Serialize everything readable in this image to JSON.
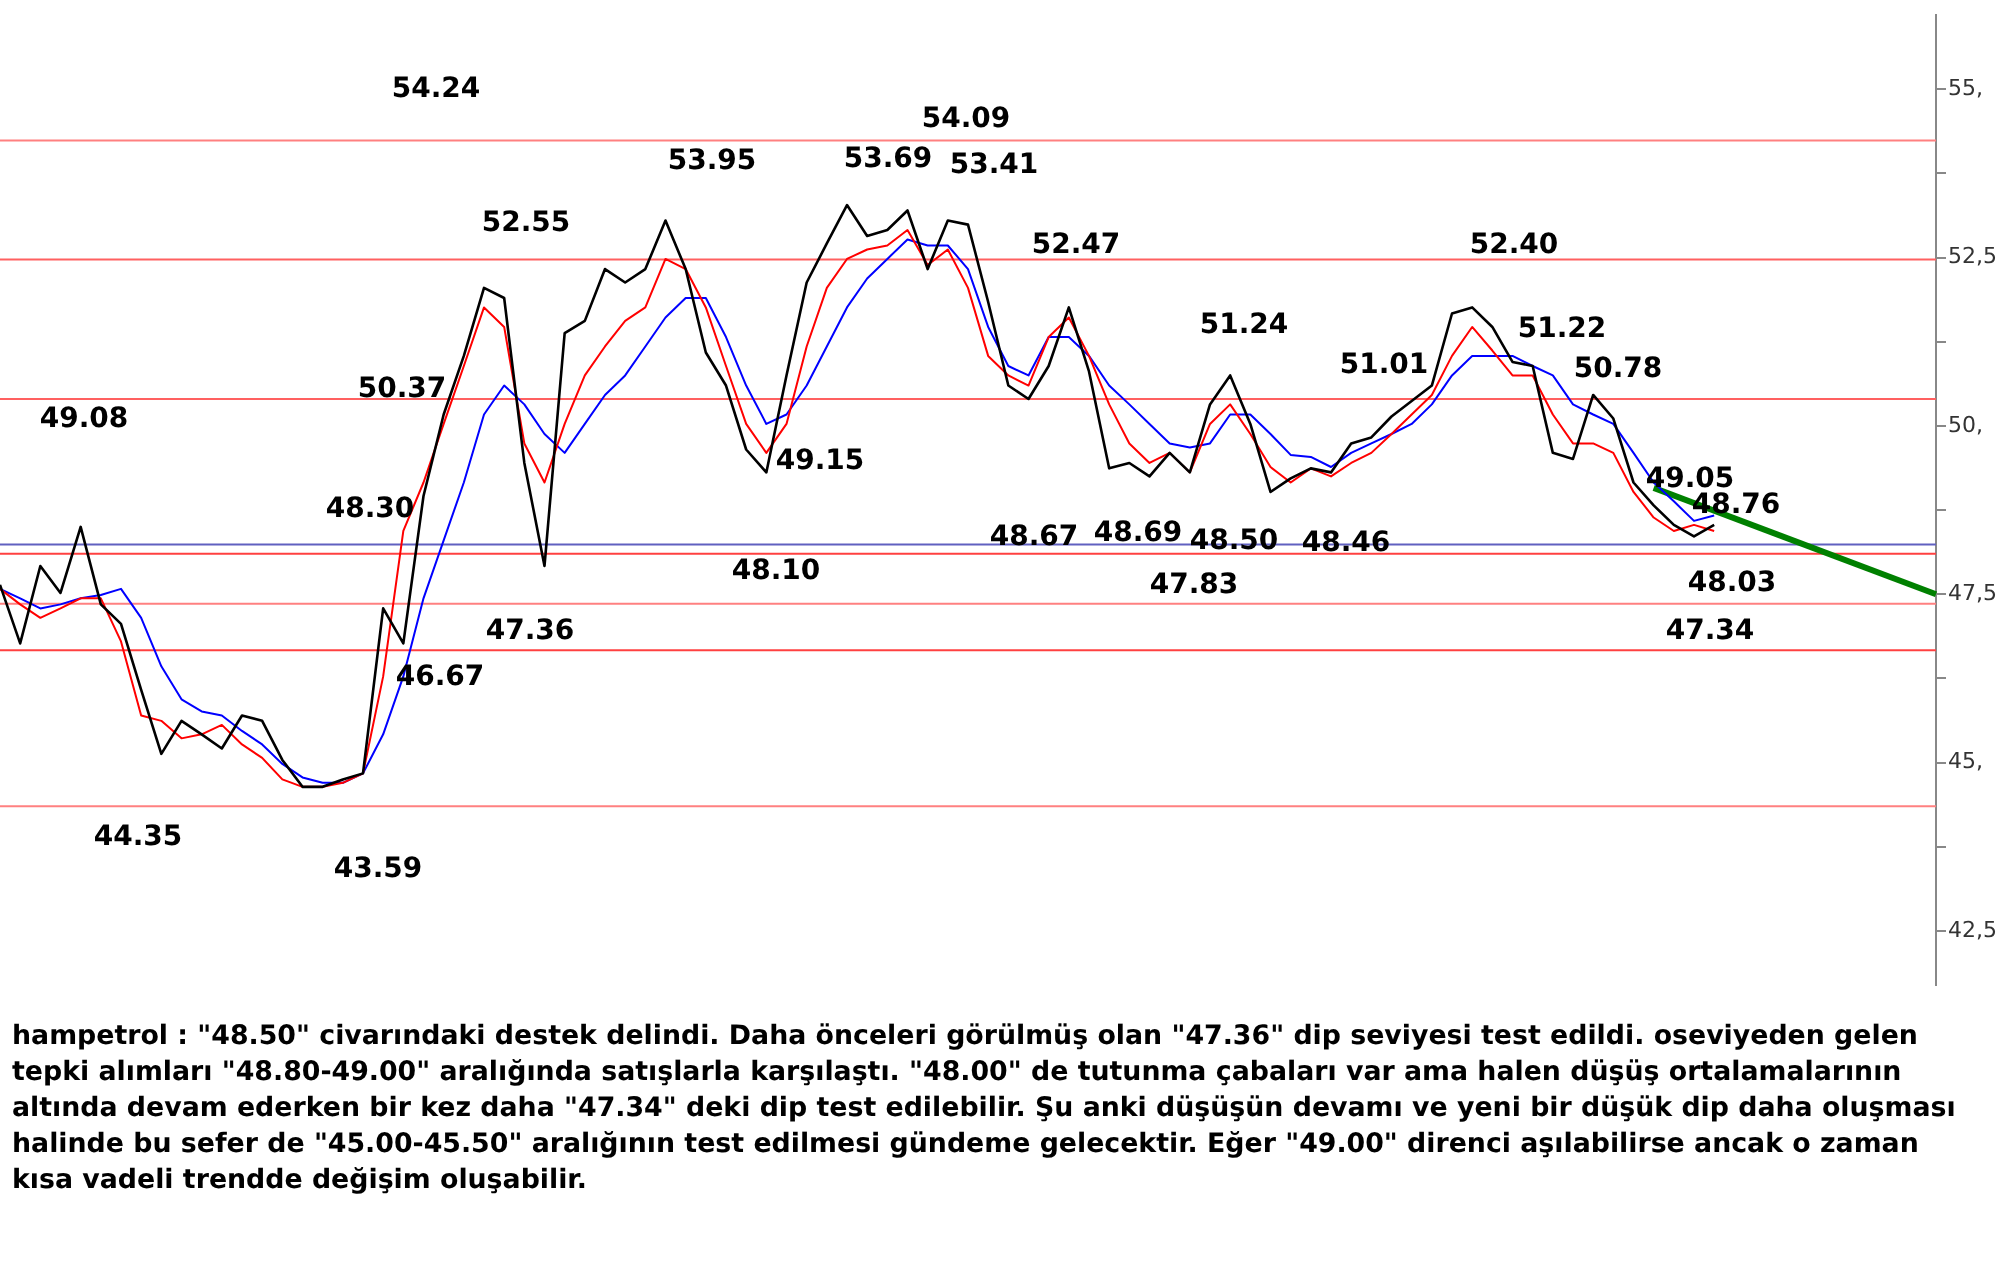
{
  "chart_data": {
    "type": "line",
    "categories": [
      null,
      null,
      null,
      null,
      null,
      null,
      null,
      null,
      null,
      null,
      null,
      null,
      null,
      null,
      null,
      null,
      null,
      null,
      null,
      null,
      null,
      null,
      null,
      null,
      null,
      null,
      null,
      null,
      null,
      null,
      null,
      null,
      null,
      null,
      null,
      null,
      null,
      null,
      null,
      null,
      null,
      null,
      null,
      null,
      null,
      null,
      null,
      null,
      null,
      null,
      null,
      null,
      null,
      null,
      null,
      null,
      null,
      null,
      null,
      null,
      null,
      null,
      null,
      null,
      null,
      null,
      null,
      null,
      null,
      null,
      null,
      null,
      null,
      null,
      null,
      null,
      null,
      null,
      null,
      null,
      null,
      null,
      null,
      null,
      null,
      null,
      null,
      null,
      null,
      null,
      null,
      null,
      null,
      null,
      null,
      null,
      null
    ],
    "series": [
      {
        "color": "#000000",
        "values": [
          47.64,
          46.77,
          47.92,
          47.52,
          48.5,
          47.35,
          47.06,
          46.08,
          45.13,
          45.62,
          45.42,
          45.21,
          45.7,
          45.62,
          45.04,
          44.64,
          44.64,
          44.75,
          44.84,
          47.29,
          46.77,
          48.96,
          50.17,
          51.04,
          52.05,
          51.9,
          49.45,
          47.92,
          51.38,
          51.56,
          52.33,
          52.13,
          52.33,
          53.05,
          52.33,
          51.09,
          50.6,
          49.65,
          49.31,
          50.75,
          52.13,
          52.71,
          53.28,
          52.82,
          52.91,
          53.2,
          52.33,
          53.05,
          52.99,
          51.84,
          50.6,
          50.4,
          50.89,
          51.76,
          50.81,
          49.37,
          49.45,
          49.25,
          49.6,
          49.31,
          50.32,
          50.75,
          50.03,
          49.02,
          49.22,
          49.37,
          49.31,
          49.74,
          49.83,
          50.14,
          50.37,
          50.6,
          51.67,
          51.76,
          51.47,
          50.95,
          50.89,
          49.6,
          49.51,
          50.46,
          50.11,
          49.16,
          48.82,
          48.53,
          48.36,
          48.53,
          null,
          null,
          null,
          null,
          null,
          null,
          null,
          null,
          null,
          null,
          null
        ]
      },
      {
        "color": "#ff0000",
        "values": [
          47.58,
          47.35,
          47.15,
          47.29,
          47.44,
          47.44,
          46.8,
          45.7,
          45.62,
          45.36,
          45.42,
          45.56,
          45.27,
          45.07,
          44.75,
          44.64,
          44.64,
          44.7,
          44.84,
          46.28,
          48.44,
          49.16,
          50.03,
          50.89,
          51.76,
          51.47,
          49.74,
          49.16,
          50.03,
          50.75,
          51.18,
          51.56,
          51.76,
          52.48,
          52.33,
          51.76,
          50.89,
          50.03,
          49.6,
          50.03,
          51.18,
          52.05,
          52.48,
          52.62,
          52.68,
          52.91,
          52.39,
          52.62,
          52.05,
          51.04,
          50.75,
          50.6,
          51.32,
          51.61,
          51.04,
          50.32,
          49.74,
          49.45,
          49.6,
          49.31,
          50.03,
          50.32,
          49.88,
          49.39,
          49.16,
          49.37,
          49.25,
          49.45,
          49.6,
          49.88,
          50.17,
          50.46,
          51.04,
          51.47,
          51.12,
          50.75,
          50.75,
          50.17,
          49.74,
          49.74,
          49.6,
          49.02,
          48.64,
          48.44,
          48.53,
          48.44,
          null,
          null,
          null,
          null,
          null,
          null,
          null,
          null,
          null,
          null,
          null
        ]
      },
      {
        "color": "#0000ff",
        "values": [
          47.58,
          47.44,
          47.29,
          47.35,
          47.44,
          47.49,
          47.58,
          47.15,
          46.43,
          45.94,
          45.76,
          45.7,
          45.47,
          45.27,
          44.98,
          44.78,
          44.7,
          44.7,
          44.84,
          45.42,
          46.28,
          47.44,
          48.3,
          49.16,
          50.17,
          50.6,
          50.32,
          49.88,
          49.6,
          50.03,
          50.46,
          50.75,
          51.18,
          51.61,
          51.9,
          51.9,
          51.32,
          50.6,
          50.03,
          50.17,
          50.6,
          51.18,
          51.76,
          52.19,
          52.48,
          52.77,
          52.68,
          52.68,
          52.33,
          51.47,
          50.89,
          50.75,
          51.32,
          51.32,
          51.04,
          50.6,
          50.32,
          50.03,
          49.74,
          49.68,
          49.74,
          50.17,
          50.17,
          49.88,
          49.57,
          49.54,
          49.39,
          49.6,
          49.74,
          49.88,
          50.03,
          50.32,
          50.75,
          51.04,
          51.04,
          51.04,
          50.89,
          50.75,
          50.32,
          50.17,
          50.03,
          49.6,
          49.16,
          48.88,
          48.59,
          48.67,
          null,
          null,
          null,
          null,
          null,
          null,
          null,
          null,
          null,
          null,
          null
        ]
      },
      {
        "type": "line",
        "color": "#008000",
        "values": [
          null,
          null,
          null,
          null,
          null,
          null,
          null,
          null,
          null,
          null,
          null,
          null,
          null,
          null,
          null,
          null,
          null,
          null,
          null,
          null,
          null,
          null,
          null,
          null,
          null,
          null,
          null,
          null,
          null,
          null,
          null,
          null,
          null,
          null,
          null,
          null,
          null,
          null,
          null,
          null,
          null,
          null,
          null,
          null,
          null,
          null,
          null,
          null,
          null,
          null,
          null,
          null,
          null,
          null,
          null,
          null,
          null,
          null,
          null,
          null,
          null,
          null,
          null,
          null,
          null,
          null,
          null,
          null,
          null,
          null,
          null,
          null,
          null,
          null,
          null,
          null,
          null,
          null,
          null,
          null,
          null,
          null,
          49.08,
          null,
          null,
          null,
          null,
          null,
          null,
          null,
          null,
          null,
          null,
          null,
          null,
          null,
          47.5
        ]
      }
    ],
    "ylim": [
      41.7,
      56.1
    ],
    "yticks": [
      {
        "value": 42.5,
        "label": "42,5"
      },
      {
        "value": 43.75,
        "label": null
      },
      {
        "value": 45,
        "label": "45,"
      },
      {
        "value": 46.25,
        "label": null
      },
      {
        "value": 47.5,
        "label": "47,5"
      },
      {
        "value": 48.75,
        "label": null
      },
      {
        "value": 50,
        "label": "50,"
      },
      {
        "value": 51.25,
        "label": null
      },
      {
        "value": 52.5,
        "label": "52,5"
      },
      {
        "value": 53.75,
        "label": null
      },
      {
        "value": 55,
        "label": "55,"
      }
    ],
    "tick_labels": "y",
    "grid": false,
    "legend": false,
    "marker": "none",
    "line_style": "solid",
    "ref_lines": [
      {
        "axis": "y",
        "value": 54.24,
        "color": "#ff8080"
      },
      {
        "axis": "y",
        "value": 52.47,
        "color": "#ff6060"
      },
      {
        "axis": "y",
        "value": 50.4,
        "color": "#ff6060"
      },
      {
        "axis": "y",
        "value": 48.1,
        "color": "#ff4040"
      },
      {
        "axis": "y",
        "value": 47.36,
        "color": "#ff8080"
      },
      {
        "axis": "y",
        "value": 46.67,
        "color": "#ff4040"
      },
      {
        "axis": "y",
        "value": 44.35,
        "color": "#ff8080"
      },
      {
        "axis": "y",
        "value": 48.24,
        "color": "#6060c0"
      }
    ],
    "annotations": [
      "54.24",
      "52.55",
      "53.95",
      "53.69",
      "54.09",
      "53.41",
      "52.47",
      "52.40",
      "51.24",
      "51.22",
      "51.01",
      "50.78",
      "49.08",
      "50.37",
      "49.15",
      "48.30",
      "49.05",
      "48.76",
      "48.67",
      "48.69",
      "48.50",
      "48.46",
      "48.10",
      "47.83",
      "48.03",
      "47.36",
      "46.67",
      "47.34",
      "44.35",
      "43.59",
      "hampetrol : \"48.50\" civarındaki destek delindi. Daha önceleri görülmüş olan \"47.36\" dip seviyesi test edildi. oseviyeden gelen tepki alımları \"48.80-49.00\" aralığında satışlarla karşılaştı. \"48.00\" de tutunma çabaları var ama halen düşüş ortalamalarının altında devam ederken bir kez daha \"47.34\" deki dip test edilebilir. Şu anki düşüşün devamı ve yeni bir düşük dip daha oluşması halinde bu sefer de \"45.00-45.50\" aralığının test edilmesi gündeme gelecektir. Eğer \"49.00\" direnci aşılabilirse ancak o zaman kısa vadeli trendde değişim oluşabilir."
    ]
  }
}
